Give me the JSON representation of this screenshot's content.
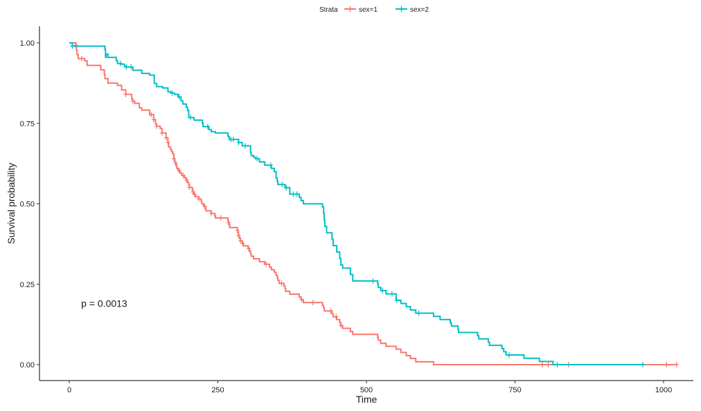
{
  "chart_data": {
    "type": "line",
    "subtype": "kaplan-meier survival curve (step)",
    "xlabel": "Time",
    "ylabel": "Survival probability",
    "xlim": [
      0,
      1022
    ],
    "ylim": [
      0,
      1
    ],
    "x_ticks": [
      0,
      250,
      500,
      750,
      1000
    ],
    "x_tick_labels": [
      "0",
      "250",
      "500",
      "750",
      "1000"
    ],
    "y_ticks": [
      0,
      0.25,
      0.5,
      0.75,
      1
    ],
    "y_tick_labels": [
      "0.00",
      "0.25",
      "0.50",
      "0.75",
      "1.00"
    ],
    "grid": false,
    "legend": {
      "title": "Strata",
      "position": "top"
    },
    "annotation": "p = 0.0013",
    "annotation_pos": [
      20,
      0.19
    ],
    "series": [
      {
        "name": "sex=1",
        "color": "#F8766D",
        "steps": [
          [
            0,
            1.0
          ],
          [
            11,
            0.993
          ],
          [
            12,
            0.978
          ],
          [
            13,
            0.964
          ],
          [
            15,
            0.951
          ],
          [
            26,
            0.944
          ],
          [
            30,
            0.93
          ],
          [
            53,
            0.916
          ],
          [
            59,
            0.902
          ],
          [
            60,
            0.889
          ],
          [
            65,
            0.875
          ],
          [
            81,
            0.868
          ],
          [
            88,
            0.854
          ],
          [
            95,
            0.84
          ],
          [
            105,
            0.826
          ],
          [
            107,
            0.819
          ],
          [
            110,
            0.812
          ],
          [
            118,
            0.798
          ],
          [
            122,
            0.791
          ],
          [
            135,
            0.777
          ],
          [
            142,
            0.762
          ],
          [
            145,
            0.748
          ],
          [
            147,
            0.741
          ],
          [
            153,
            0.734
          ],
          [
            156,
            0.72
          ],
          [
            163,
            0.705
          ],
          [
            166,
            0.691
          ],
          [
            167,
            0.677
          ],
          [
            170,
            0.669
          ],
          [
            172,
            0.662
          ],
          [
            174,
            0.655
          ],
          [
            176,
            0.64
          ],
          [
            177,
            0.632
          ],
          [
            179,
            0.625
          ],
          [
            180,
            0.618
          ],
          [
            181,
            0.61
          ],
          [
            183,
            0.603
          ],
          [
            186,
            0.596
          ],
          [
            189,
            0.588
          ],
          [
            194,
            0.581
          ],
          [
            197,
            0.574
          ],
          [
            199,
            0.566
          ],
          [
            201,
            0.559
          ],
          [
            202,
            0.551
          ],
          [
            207,
            0.544
          ],
          [
            208,
            0.537
          ],
          [
            210,
            0.529
          ],
          [
            212,
            0.522
          ],
          [
            218,
            0.515
          ],
          [
            222,
            0.507
          ],
          [
            223,
            0.5
          ],
          [
            226,
            0.492
          ],
          [
            229,
            0.485
          ],
          [
            230,
            0.478
          ],
          [
            239,
            0.47
          ],
          [
            245,
            0.463
          ],
          [
            246,
            0.456
          ],
          [
            267,
            0.448
          ],
          [
            268,
            0.441
          ],
          [
            269,
            0.434
          ],
          [
            270,
            0.426
          ],
          [
            283,
            0.417
          ],
          [
            284,
            0.409
          ],
          [
            285,
            0.401
          ],
          [
            286,
            0.393
          ],
          [
            288,
            0.385
          ],
          [
            291,
            0.377
          ],
          [
            293,
            0.369
          ],
          [
            301,
            0.361
          ],
          [
            303,
            0.353
          ],
          [
            305,
            0.345
          ],
          [
            306,
            0.337
          ],
          [
            310,
            0.329
          ],
          [
            320,
            0.32
          ],
          [
            329,
            0.312
          ],
          [
            337,
            0.303
          ],
          [
            340,
            0.295
          ],
          [
            345,
            0.287
          ],
          [
            348,
            0.278
          ],
          [
            350,
            0.27
          ],
          [
            351,
            0.262
          ],
          [
            353,
            0.253
          ],
          [
            361,
            0.245
          ],
          [
            363,
            0.236
          ],
          [
            364,
            0.228
          ],
          [
            371,
            0.219
          ],
          [
            387,
            0.21
          ],
          [
            390,
            0.202
          ],
          [
            394,
            0.193
          ],
          [
            426,
            0.184
          ],
          [
            428,
            0.176
          ],
          [
            429,
            0.167
          ],
          [
            442,
            0.158
          ],
          [
            444,
            0.149
          ],
          [
            450,
            0.14
          ],
          [
            455,
            0.131
          ],
          [
            457,
            0.122
          ],
          [
            460,
            0.113
          ],
          [
            473,
            0.103
          ],
          [
            477,
            0.094
          ],
          [
            519,
            0.085
          ],
          [
            520,
            0.076
          ],
          [
            524,
            0.066
          ],
          [
            533,
            0.057
          ],
          [
            550,
            0.048
          ],
          [
            558,
            0.038
          ],
          [
            567,
            0.028
          ],
          [
            574,
            0.019
          ],
          [
            583,
            0.009
          ],
          [
            613,
            0.0
          ]
        ],
        "censor_times": [
          11,
          21,
          95,
          107,
          138,
          142,
          147,
          156,
          163,
          166,
          176,
          179,
          185,
          192,
          197,
          202,
          208,
          211,
          218,
          228,
          239,
          255,
          268,
          283,
          285,
          288,
          292,
          302,
          331,
          357,
          391,
          410,
          440,
          449,
          457,
          796,
          806,
          840,
          1005,
          1022
        ]
      },
      {
        "name": "sex=2",
        "color": "#00BFC4",
        "steps": [
          [
            0,
            1.0
          ],
          [
            5,
            0.99
          ],
          [
            60,
            0.98
          ],
          [
            61,
            0.955
          ],
          [
            62,
            0.965
          ],
          [
            65,
            0.955
          ],
          [
            79,
            0.945
          ],
          [
            81,
            0.936
          ],
          [
            88,
            0.934
          ],
          [
            93,
            0.926
          ],
          [
            95,
            0.925
          ],
          [
            107,
            0.915
          ],
          [
            122,
            0.905
          ],
          [
            135,
            0.9
          ],
          [
            143,
            0.874
          ],
          [
            147,
            0.864
          ],
          [
            157,
            0.86
          ],
          [
            166,
            0.848
          ],
          [
            171,
            0.844
          ],
          [
            177,
            0.84
          ],
          [
            183,
            0.832
          ],
          [
            188,
            0.82
          ],
          [
            191,
            0.81
          ],
          [
            197,
            0.8
          ],
          [
            199,
            0.79
          ],
          [
            201,
            0.768
          ],
          [
            210,
            0.76
          ],
          [
            224,
            0.75
          ],
          [
            225,
            0.74
          ],
          [
            235,
            0.73
          ],
          [
            239,
            0.724
          ],
          [
            246,
            0.72
          ],
          [
            267,
            0.71
          ],
          [
            269,
            0.7
          ],
          [
            285,
            0.69
          ],
          [
            291,
            0.68
          ],
          [
            305,
            0.66
          ],
          [
            306,
            0.65
          ],
          [
            310,
            0.645
          ],
          [
            313,
            0.64
          ],
          [
            320,
            0.63
          ],
          [
            329,
            0.62
          ],
          [
            340,
            0.61
          ],
          [
            345,
            0.6
          ],
          [
            348,
            0.58
          ],
          [
            350,
            0.57
          ],
          [
            351,
            0.56
          ],
          [
            363,
            0.55
          ],
          [
            371,
            0.53
          ],
          [
            387,
            0.52
          ],
          [
            390,
            0.51
          ],
          [
            394,
            0.5
          ],
          [
            426,
            0.49
          ],
          [
            428,
            0.47
          ],
          [
            429,
            0.45
          ],
          [
            430,
            0.43
          ],
          [
            433,
            0.41
          ],
          [
            442,
            0.39
          ],
          [
            444,
            0.37
          ],
          [
            450,
            0.35
          ],
          [
            455,
            0.33
          ],
          [
            457,
            0.31
          ],
          [
            460,
            0.3
          ],
          [
            473,
            0.28
          ],
          [
            477,
            0.26
          ],
          [
            519,
            0.25
          ],
          [
            520,
            0.24
          ],
          [
            524,
            0.23
          ],
          [
            533,
            0.22
          ],
          [
            550,
            0.2
          ],
          [
            558,
            0.19
          ],
          [
            567,
            0.18
          ],
          [
            574,
            0.17
          ],
          [
            583,
            0.16
          ],
          [
            613,
            0.15
          ],
          [
            624,
            0.14
          ],
          [
            641,
            0.13
          ],
          [
            643,
            0.12
          ],
          [
            654,
            0.11
          ],
          [
            655,
            0.1
          ],
          [
            687,
            0.09
          ],
          [
            689,
            0.08
          ],
          [
            705,
            0.07
          ],
          [
            707,
            0.06
          ],
          [
            728,
            0.05
          ],
          [
            731,
            0.04
          ],
          [
            735,
            0.03
          ],
          [
            765,
            0.02
          ],
          [
            791,
            0.01
          ],
          [
            814,
            0.0
          ]
        ],
        "censor_times": [
          5,
          86,
          96,
          104,
          173,
          185,
          204,
          233,
          272,
          276,
          285,
          296,
          316,
          339,
          358,
          365,
          377,
          383,
          511,
          527,
          543,
          551,
          588,
          740,
          821,
          965
        ]
      }
    ]
  }
}
